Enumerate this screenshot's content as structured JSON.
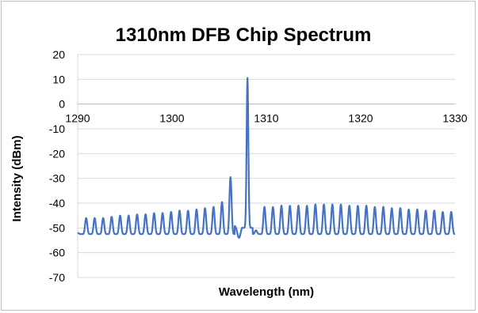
{
  "chart_data": {
    "type": "line",
    "title": "1310nm DFB Chip Spectrum",
    "xlabel": "Wavelength (nm)",
    "ylabel": "Intensity (dBm)",
    "xlim": [
      1290,
      1330
    ],
    "ylim": [
      -70,
      20
    ],
    "x_ticks": [
      "1290",
      "1300",
      "1310",
      "1320",
      "1330"
    ],
    "y_ticks": [
      "20",
      "10",
      "0",
      "-10",
      "-20",
      "-30",
      "-40",
      "-50",
      "-60",
      "-70"
    ],
    "x_axis_crosses_y": 0,
    "grid": "horizontal major",
    "legend": "none",
    "series_color": "#4472c4",
    "series": [
      {
        "x": [
          1290.0,
          1290.9,
          1291.8,
          1292.7,
          1293.6,
          1294.5,
          1295.4,
          1296.3,
          1297.2,
          1298.1,
          1299.0,
          1299.9,
          1300.8,
          1301.7,
          1302.6,
          1303.5,
          1304.4,
          1305.3,
          1306.2,
          1307.1,
          1308.0,
          1308.9,
          1309.8,
          1310.7,
          1311.6,
          1312.5,
          1313.4,
          1314.3,
          1315.2,
          1316.1,
          1317.0,
          1317.9,
          1318.8,
          1319.7,
          1320.6,
          1321.5,
          1322.4,
          1323.3,
          1324.2,
          1325.1,
          1326.0,
          1326.9,
          1327.8,
          1328.7,
          1329.6,
          1330.0
        ],
        "y": [
          -52,
          -46,
          -46,
          -46,
          -45.5,
          -45,
          -45,
          -44.5,
          -44.5,
          -44,
          -44,
          -43.5,
          -43,
          -43,
          -42.5,
          -42,
          -41.5,
          -39.5,
          -29.5,
          -54,
          10.5,
          -51,
          -41.5,
          -41.5,
          -41,
          -41,
          -41,
          -41,
          -40.5,
          -40.5,
          -40.5,
          -40.5,
          -41,
          -41,
          -41,
          -41.5,
          -41.5,
          -42,
          -42,
          -42.5,
          -42.5,
          -43,
          -43,
          -43.5,
          -43.5,
          -52
        ]
      }
    ]
  }
}
